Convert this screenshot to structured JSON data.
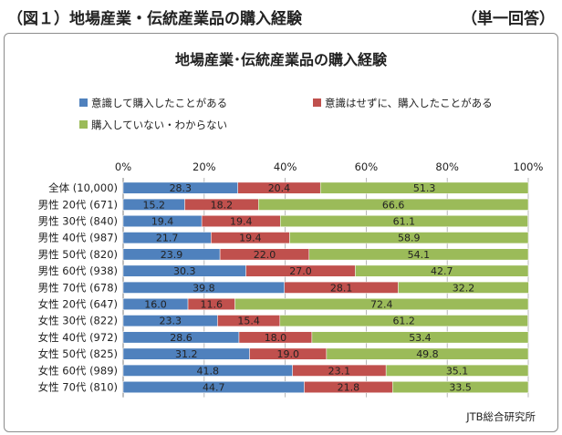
{
  "header": {
    "figure_title": "（図１）地場産業・伝統産業品の購入経験",
    "answer_note": "（単一回答）"
  },
  "source": "JTB総合研究所",
  "colors": {
    "s1": "#4f81bd",
    "s2": "#c0504d",
    "s3": "#9bbb59"
  },
  "chart_data": {
    "type": "bar",
    "orientation": "horizontal",
    "stacked": true,
    "title": "地場産業･伝統産業品の購入経験",
    "categories": [
      "全体 (10,000)",
      "男性 20代 (671)",
      "男性 30代 (840)",
      "男性 40代 (987)",
      "男性 50代 (820)",
      "男性 60代 (938)",
      "男性 70代 (678)",
      "女性 20代 (647)",
      "女性 30代 (822)",
      "女性 40代 (972)",
      "女性 50代 (825)",
      "女性 60代 (989)",
      "女性 70代 (810)"
    ],
    "series": [
      {
        "name": "意識して購入したことがある",
        "values": [
          28.3,
          15.2,
          19.4,
          21.7,
          23.9,
          30.3,
          39.8,
          16.0,
          23.3,
          28.6,
          31.2,
          41.8,
          44.7
        ]
      },
      {
        "name": "意識はせずに、購入したことがある",
        "values": [
          20.4,
          18.2,
          19.4,
          19.4,
          22.0,
          27.0,
          28.1,
          11.6,
          15.4,
          18.0,
          19.0,
          23.1,
          21.8
        ]
      },
      {
        "name": "購入していない・わからない",
        "values": [
          51.3,
          66.6,
          61.1,
          58.9,
          54.1,
          42.7,
          32.2,
          72.4,
          61.2,
          53.4,
          49.8,
          35.1,
          33.5
        ]
      }
    ],
    "xlim": [
      0,
      100
    ],
    "xticks": [
      "0%",
      "20%",
      "40%",
      "60%",
      "80%",
      "100%"
    ],
    "grid": true,
    "legend_position": "top"
  }
}
